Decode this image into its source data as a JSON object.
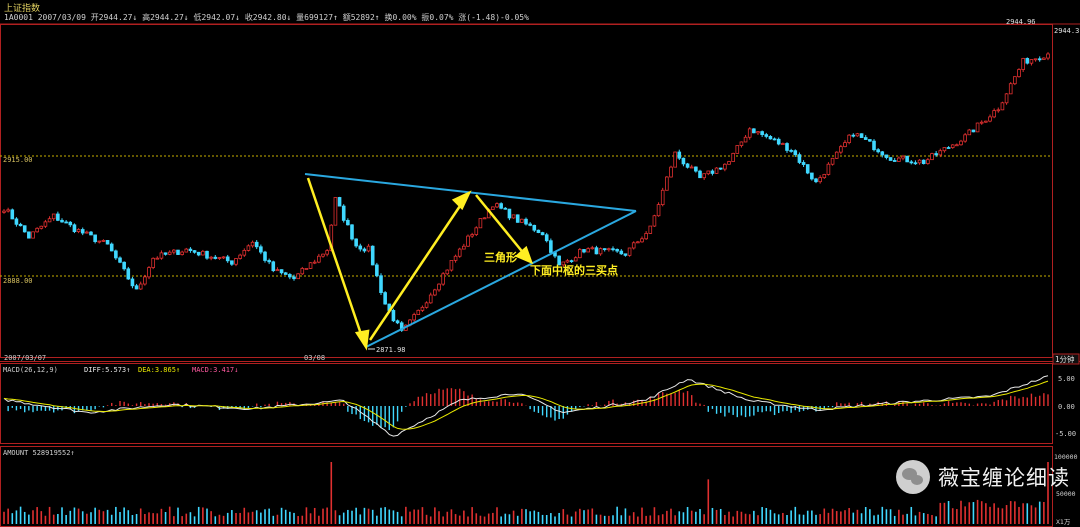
{
  "header": {
    "title": "上证指数",
    "code": "1A0001",
    "date": "2007/03/09",
    "open": "开2944.27↓",
    "high": "高2944.27↓",
    "low": "低2942.07↓",
    "close": "收2942.80↓",
    "volume": "量699127↑",
    "amount": "额52892↑",
    "turnover": "换0.00%",
    "amplitude": "振0.07%",
    "change": "涨(-1.48)-0.05%"
  },
  "price_panel": {
    "levels": [
      "2915.00",
      "2888.00"
    ],
    "max_label": "2944.96",
    "last_label": "2944.3",
    "min_label": "2871.98",
    "date_start": "2007/03/07",
    "date_mid": "03/08",
    "timeframe": "1分钟",
    "annotations": [
      "三角形",
      "下面中枢的三买点"
    ]
  },
  "macd_panel": {
    "label": "MACD(26,12,9)",
    "diff": "DIFF:5.573↑",
    "dea": "DEA:3.865↑",
    "macd": "MACD:3.417↓",
    "ticks": [
      "5.00",
      "0.00",
      "-5.00"
    ]
  },
  "amount_panel": {
    "label": "AMOUNT 528919552↑",
    "ticks": [
      "100000",
      "50000"
    ],
    "unit": "X1万"
  },
  "watermark": "薇宝缠论细读",
  "colors": {
    "up": "#e03030",
    "down": "#40d8ff",
    "trend": "#2aa8e0",
    "arrow": "#ffee22",
    "diff": "#e8e8e8",
    "dea": "#e8e800"
  },
  "chart_data": {
    "type": "candlestick",
    "y_range": [
      2867,
      2948
    ],
    "waypoints": [
      [
        0,
        2903
      ],
      [
        6,
        2896
      ],
      [
        12,
        2901
      ],
      [
        17,
        2898
      ],
      [
        25,
        2894
      ],
      [
        32,
        2883
      ],
      [
        36,
        2891
      ],
      [
        44,
        2893
      ],
      [
        55,
        2890
      ],
      [
        60,
        2895
      ],
      [
        65,
        2888
      ],
      [
        70,
        2886
      ],
      [
        78,
        2893
      ],
      [
        80,
        2905
      ],
      [
        85,
        2894
      ],
      [
        88,
        2893
      ],
      [
        92,
        2880
      ],
      [
        96,
        2873
      ],
      [
        100,
        2878
      ],
      [
        108,
        2890
      ],
      [
        118,
        2904
      ],
      [
        124,
        2900
      ],
      [
        130,
        2897
      ],
      [
        134,
        2889
      ],
      [
        140,
        2893
      ],
      [
        150,
        2892
      ],
      [
        156,
        2898
      ],
      [
        162,
        2916
      ],
      [
        168,
        2910
      ],
      [
        175,
        2914
      ],
      [
        180,
        2922
      ],
      [
        190,
        2917
      ],
      [
        196,
        2909
      ],
      [
        205,
        2921
      ],
      [
        214,
        2915
      ],
      [
        222,
        2914
      ],
      [
        232,
        2920
      ],
      [
        240,
        2927
      ],
      [
        246,
        2938
      ],
      [
        252,
        2940
      ]
    ],
    "macd_waypoints": [
      [
        0,
        1.2
      ],
      [
        20,
        -1.2
      ],
      [
        40,
        0.3
      ],
      [
        60,
        -0.5
      ],
      [
        82,
        1.0
      ],
      [
        94,
        -5.6
      ],
      [
        110,
        1.0
      ],
      [
        124,
        2.4
      ],
      [
        135,
        -1.2
      ],
      [
        155,
        1.1
      ],
      [
        165,
        5.0
      ],
      [
        180,
        1.0
      ],
      [
        196,
        -0.7
      ],
      [
        215,
        0.6
      ],
      [
        238,
        1.8
      ],
      [
        252,
        5.5
      ]
    ],
    "amount_spikes": [
      [
        79,
        1.0
      ],
      [
        170,
        0.72
      ],
      [
        252,
        1.0
      ]
    ]
  }
}
